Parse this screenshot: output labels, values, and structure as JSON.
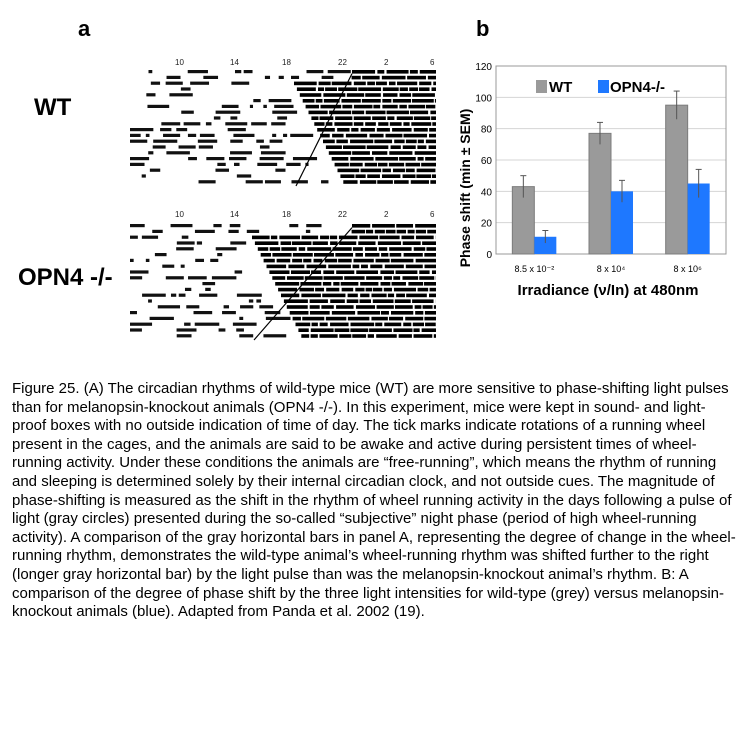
{
  "panel_a": {
    "letter": "a",
    "rows": [
      {
        "label": "WT",
        "time_ticks": [
          "10",
          "14",
          "18",
          "22",
          "2",
          "6"
        ]
      },
      {
        "label": "OPN4 -/-",
        "time_ticks": [
          "10",
          "14",
          "18",
          "22",
          "2",
          "6"
        ]
      }
    ]
  },
  "panel_b": {
    "letter": "b"
  },
  "chart_data": {
    "type": "bar",
    "title": "",
    "ylabel": "Phase shift (min ± SEM)",
    "xlabel": "Irradiance (ν/In) at 480nm",
    "ylim": [
      0,
      120
    ],
    "yticks": [
      "120",
      "100",
      "80",
      "60",
      "40",
      "20",
      "0"
    ],
    "categories": [
      "8.5 x 10⁻²",
      "8 x 10⁴",
      "8 x 10⁶"
    ],
    "series": [
      {
        "name": "WT",
        "color": "#9a9a9a",
        "values": [
          43,
          77,
          95
        ],
        "errors": [
          7,
          7,
          9
        ]
      },
      {
        "name": "OPN4-/-",
        "color": "#1e78ff",
        "values": [
          11,
          40,
          45
        ],
        "errors": [
          4,
          7,
          9
        ]
      }
    ],
    "legend": "top-left"
  },
  "caption": "Figure 25. (A) The circadian rhythms of wild-type mice (WT) are more sensitive to phase-shifting light pulses than for melanopsin-knockout animals (OPN4 -/-). In this experiment, mice were kept in sound- and light-proof boxes with no outside indication of time of day. The tick marks indicate rotations of a running wheel present in the cages, and the animals are said to be awake and active during persistent times of wheel-running activity. Under these conditions the animals are “free-running”, which means the rhythm of running and sleeping is determined solely by their internal circadian clock, and not outside cues. The magnitude of phase-shifting is measured as the shift in the rhythm of wheel running activity in the days following a pulse of light (gray circles) presented during the so-called “subjective” night phase (period of high wheel-running activity). A comparison of the gray horizontal bars in panel A, representing the degree of change in the wheel-running rhythm, demonstrates the wild-type animal’s wheel-running rhythm was shifted further to the right (longer gray horizontal bar) by the light pulse than was the melanopsin-knockout animal’s rhythm. B: A comparison of the degree of phase shift by the three light intensities for wild-type (grey) versus melanopsin-knockout animals (blue). Adapted from Panda et al. 2002 (19)."
}
